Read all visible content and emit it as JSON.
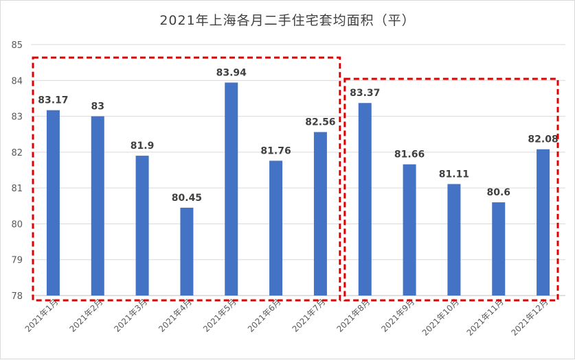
{
  "chart_data": {
    "type": "bar",
    "title": "2021年上海各月二手住宅套均面积（平）",
    "categories": [
      "2021年1月",
      "2021年2月",
      "2021年3月",
      "2021年4月",
      "2021年5月",
      "2021年6月",
      "2021年7月",
      "2021年8月",
      "2021年9月",
      "2021年10月",
      "2021年11月",
      "2021年12月"
    ],
    "values": [
      83.17,
      83,
      81.9,
      80.45,
      83.94,
      81.76,
      82.56,
      83.37,
      81.66,
      81.11,
      80.6,
      82.08
    ],
    "value_labels": [
      "83.17",
      "83",
      "81.9",
      "80.45",
      "83.94",
      "81.76",
      "82.56",
      "83.37",
      "81.66",
      "81.11",
      "80.6",
      "82.08"
    ],
    "ylim": [
      78,
      85
    ],
    "yticks": [
      "78",
      "79",
      "80",
      "81",
      "82",
      "83",
      "84",
      "85"
    ],
    "grid": true,
    "bar_color": "#4472C4",
    "highlight_color": "#E00000",
    "highlight_groups": [
      {
        "from": "2021年1月",
        "to": "2021年7月"
      },
      {
        "from": "2021年8月",
        "to": "2021年12月"
      }
    ]
  }
}
